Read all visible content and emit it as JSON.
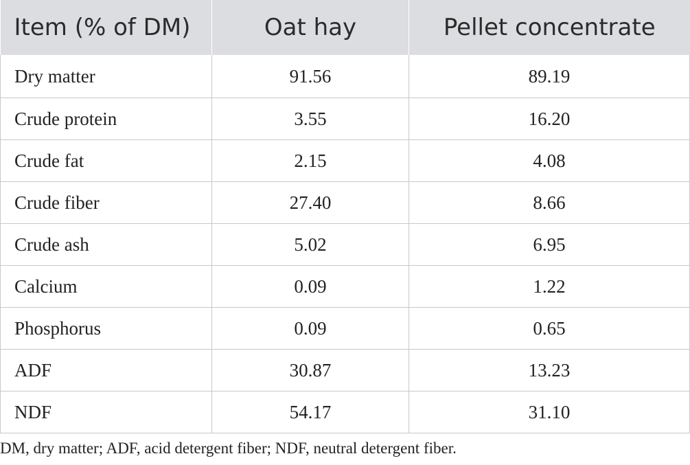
{
  "table": {
    "headers": [
      "Item (% of DM)",
      "Oat hay",
      "Pellet concentrate"
    ],
    "rows": [
      [
        "Dry matter",
        "91.56",
        "89.19"
      ],
      [
        "Crude protein",
        "3.55",
        "16.20"
      ],
      [
        "Crude fat",
        "2.15",
        "4.08"
      ],
      [
        "Crude fiber",
        "27.40",
        "8.66"
      ],
      [
        "Crude ash",
        "5.02",
        "6.95"
      ],
      [
        "Calcium",
        "0.09",
        "1.22"
      ],
      [
        "Phosphorus",
        "0.09",
        "0.65"
      ],
      [
        "ADF",
        "30.87",
        "13.23"
      ],
      [
        "NDF",
        "54.17",
        "31.10"
      ]
    ]
  },
  "footnote": "DM, dry matter; ADF, acid detergent fiber; NDF, neutral detergent fiber.",
  "colors": {
    "header_background": "#dcdde0",
    "grid_lines": "#c8c8c8"
  }
}
